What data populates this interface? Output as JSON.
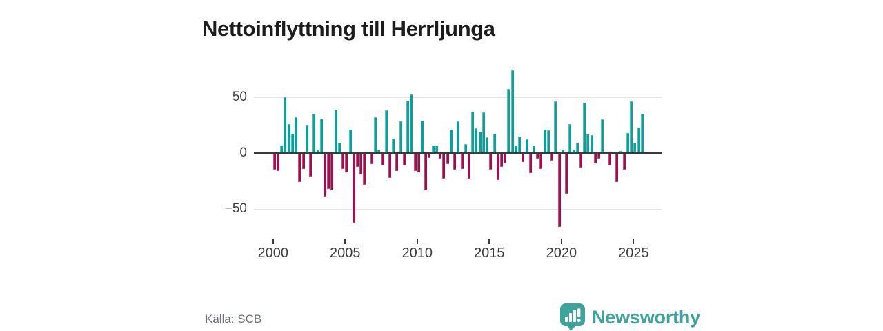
{
  "chart": {
    "title": "Nettoinflyttning till Herrljunga",
    "source": "Källa: SCB"
  },
  "brand": {
    "name": "Newsworthy"
  },
  "chart_data": {
    "type": "bar",
    "title": "Nettoinflyttning till Herrljunga",
    "legend": "none",
    "grid": "horizontal",
    "ylim": [
      -70,
      80
    ],
    "y_ticks": [
      50,
      0,
      -50
    ],
    "y_tick_labels": [
      "50",
      "0",
      "−50"
    ],
    "x_tick_years": [
      2000,
      2005,
      2010,
      2015,
      2020,
      2025
    ],
    "x_tick_labels": [
      "2000",
      "2005",
      "2010",
      "2015",
      "2020",
      "2025"
    ],
    "positive_color": "#0ba099",
    "negative_color": "#a20d4d",
    "x": [
      "2000 Q1",
      "2000 Q2",
      "2000 Q3",
      "2000 Q4",
      "2001 Q1",
      "2001 Q2",
      "2001 Q3",
      "2001 Q4",
      "2002 Q1",
      "2002 Q2",
      "2002 Q3",
      "2002 Q4",
      "2003 Q1",
      "2003 Q2",
      "2003 Q3",
      "2003 Q4",
      "2004 Q1",
      "2004 Q2",
      "2004 Q3",
      "2004 Q4",
      "2005 Q1",
      "2005 Q2",
      "2005 Q3",
      "2005 Q4",
      "2006 Q1",
      "2006 Q2",
      "2006 Q3",
      "2006 Q4",
      "2007 Q1",
      "2007 Q2",
      "2007 Q3",
      "2007 Q4",
      "2008 Q1",
      "2008 Q2",
      "2008 Q3",
      "2008 Q4",
      "2009 Q1",
      "2009 Q2",
      "2009 Q3",
      "2009 Q4",
      "2010 Q1",
      "2010 Q2",
      "2010 Q3",
      "2010 Q4",
      "2011 Q1",
      "2011 Q2",
      "2011 Q3",
      "2011 Q4",
      "2012 Q1",
      "2012 Q2",
      "2012 Q3",
      "2012 Q4",
      "2013 Q1",
      "2013 Q2",
      "2013 Q3",
      "2013 Q4",
      "2014 Q1",
      "2014 Q2",
      "2014 Q3",
      "2014 Q4",
      "2015 Q1",
      "2015 Q2",
      "2015 Q3",
      "2015 Q4",
      "2016 Q1",
      "2016 Q2",
      "2016 Q3",
      "2016 Q4",
      "2017 Q1",
      "2017 Q2",
      "2017 Q3",
      "2017 Q4",
      "2018 Q1",
      "2018 Q2",
      "2018 Q3",
      "2018 Q4",
      "2019 Q1",
      "2019 Q2",
      "2019 Q3",
      "2019 Q4",
      "2020 Q1",
      "2020 Q2",
      "2020 Q3",
      "2020 Q4",
      "2021 Q1",
      "2021 Q2",
      "2021 Q3",
      "2021 Q4",
      "2022 Q1",
      "2022 Q2",
      "2022 Q3",
      "2022 Q4",
      "2023 Q1",
      "2023 Q2",
      "2023 Q3",
      "2023 Q4",
      "2024 Q1",
      "2024 Q2",
      "2024 Q3",
      "2024 Q4",
      "2025 Q1",
      "2025 Q2",
      "2025 Q3"
    ],
    "values": [
      -15,
      -16,
      7,
      50,
      26,
      17,
      32,
      -26,
      -14,
      25,
      -21,
      35,
      3,
      31,
      -39,
      -32,
      -33,
      39,
      9,
      -14,
      -17,
      21,
      -62,
      -12,
      -19,
      -28,
      1,
      -10,
      32,
      3,
      -11,
      38,
      -22,
      13,
      -16,
      28,
      -11,
      47,
      52,
      -16,
      -17,
      29,
      -33,
      -4,
      7,
      7,
      -5,
      -23,
      -10,
      21,
      -15,
      28,
      -14,
      8,
      -23,
      37,
      22,
      19,
      36,
      14,
      -15,
      17,
      -24,
      -12,
      -9,
      57,
      74,
      7,
      15,
      -8,
      12,
      -18,
      7,
      -5,
      -14,
      21,
      20,
      -7,
      46,
      -66,
      3,
      -36,
      26,
      3,
      9,
      -13,
      45,
      17,
      16,
      -9,
      -5,
      30,
      1,
      -11,
      0,
      -26,
      2,
      -15,
      18,
      46,
      9,
      23,
      35
    ]
  }
}
